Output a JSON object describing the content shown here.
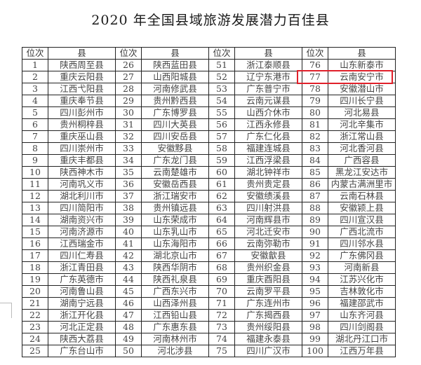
{
  "title": "2020 年全国县域旅游发展潜力百佳县",
  "headers": [
    "位次",
    "县",
    "位次",
    "县",
    "位次",
    "县",
    "位次",
    "县"
  ],
  "highlight_color": "#e0202a",
  "highlighted": {
    "rank": "77",
    "county": "云南安宁市"
  },
  "rows": [
    [
      "1",
      "陕西周至县",
      "26",
      "陕西蓝田县",
      "51",
      "浙江泰顺县",
      "76",
      "山东新泰市"
    ],
    [
      "2",
      "重庆云阳县",
      "27",
      "山西阳城县",
      "52",
      "辽宁东港市",
      "77",
      "云南安宁市"
    ],
    [
      "3",
      "江西弋阳县",
      "28",
      "河南修武县",
      "53",
      "广东普宁市",
      "78",
      "安徽潜山市"
    ],
    [
      "4",
      "重庆奉节县",
      "29",
      "贵州黔西县",
      "54",
      "云南元谋县",
      "79",
      "四川长宁县"
    ],
    [
      "5",
      "四川彭州市",
      "30",
      "广东博罗县",
      "55",
      "山西介休市",
      "80",
      "河北易县"
    ],
    [
      "6",
      "贵州桐梓县",
      "31",
      "四川大英县",
      "56",
      "江西永修县",
      "81",
      "河北辛集市"
    ],
    [
      "7",
      "重庆巫山县",
      "32",
      "四川安岳县",
      "57",
      "广东仁化县",
      "82",
      "浙江常山县"
    ],
    [
      "8",
      "四川崇州市",
      "33",
      "安徽黟县",
      "58",
      "福建连城县",
      "83",
      "河北香河县"
    ],
    [
      "9",
      "重庆丰都县",
      "34",
      "广东龙门县",
      "59",
      "江西浮梁县",
      "84",
      "广西容县"
    ],
    [
      "10",
      "陕西神木市",
      "35",
      "云南楚雄市",
      "60",
      "湖北钟祥市",
      "85",
      "黑龙江安达市"
    ],
    [
      "11",
      "河南巩义市",
      "36",
      "安徽岳西县",
      "61",
      "贵州贵定县",
      "86",
      "内蒙古满洲里市"
    ],
    [
      "12",
      "湖北利川市",
      "37",
      "浙江瑞安市",
      "62",
      "安徽绩溪县",
      "87",
      "云南石林县"
    ],
    [
      "13",
      "四川简阳市",
      "38",
      "贵州镇远县",
      "63",
      "四川射洪县",
      "88",
      "安徽颍上县"
    ],
    [
      "14",
      "湖南资兴市",
      "39",
      "山东荣成市",
      "64",
      "河南辉县市",
      "89",
      "四川宣汉县"
    ],
    [
      "15",
      "河南济源市",
      "40",
      "山东乳山市",
      "65",
      "河北迁安市",
      "90",
      "广西北流市"
    ],
    [
      "16",
      "江西瑞金市",
      "41",
      "山东海阳市",
      "66",
      "云南弥勒市",
      "91",
      "四川邻水县"
    ],
    [
      "17",
      "四川仁寿县",
      "42",
      "湖北京山市",
      "67",
      "安徽歙县",
      "92",
      "广东佛冈县"
    ],
    [
      "18",
      "浙江青田县",
      "43",
      "陕西华阴市",
      "68",
      "贵州织金县",
      "93",
      "河南新县"
    ],
    [
      "19",
      "广东英德市",
      "44",
      "陕西礼泉县",
      "69",
      "重庆酉阳县",
      "94",
      "江苏兴化市"
    ],
    [
      "20",
      "河南鲁山县",
      "45",
      "广西东兴市",
      "70",
      "云南罗平县",
      "95",
      "吉林敦化市"
    ],
    [
      "21",
      "湖南宁远县",
      "46",
      "山西泽州县",
      "71",
      "广东连州市",
      "96",
      "福建邵武市"
    ],
    [
      "22",
      "浙江开化县",
      "47",
      "江西铅山县",
      "72",
      "广东揭西县",
      "97",
      "山东齐河县"
    ],
    [
      "23",
      "河北正定县",
      "48",
      "广东惠东县",
      "73",
      "贵州绥阳县",
      "98",
      "四川剑阁县"
    ],
    [
      "24",
      "陕西大荔县",
      "49",
      "河南林州市",
      "74",
      "福建永泰县",
      "99",
      "湖北丹江口市"
    ],
    [
      "25",
      "广东台山市",
      "50",
      "河北涉县",
      "75",
      "四川广汉市",
      "100",
      "江西万年县"
    ]
  ]
}
